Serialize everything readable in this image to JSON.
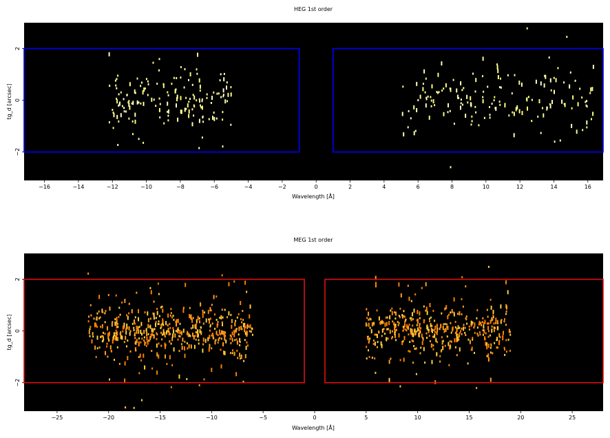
{
  "chart_data": [
    {
      "type": "heatmap",
      "title": "HEG 1st order",
      "xlabel": "Wavelength [Å]",
      "ylabel": "tg_d [arcsec]",
      "xlim": [
        -17.2,
        16.9
      ],
      "ylim": [
        -3.1,
        3.0
      ],
      "xticks": [
        -16,
        -14,
        -12,
        -10,
        -8,
        -6,
        -4,
        -2,
        0,
        2,
        4,
        6,
        8,
        10,
        12,
        14,
        16
      ],
      "yticks": [
        -2,
        0,
        2
      ],
      "background_color": "#000000",
      "event_colors": [
        "#ffff80",
        "#ffffc0"
      ],
      "region_color": "#0000ff",
      "regions": [
        {
          "x": [
            -17.2,
            -1.0
          ],
          "y": [
            -2.0,
            2.0
          ]
        },
        {
          "x": [
            1.0,
            16.9
          ],
          "y": [
            -2.0,
            2.0
          ]
        }
      ],
      "event_clusters": [
        {
          "x_range": [
            -12.2,
            -5.0
          ],
          "core_sd": 0.6,
          "count": 170
        },
        {
          "x_range": [
            5.0,
            16.4
          ],
          "core_sd": 0.6,
          "count": 170
        }
      ]
    },
    {
      "type": "heatmap",
      "title": "MEG 1st order",
      "xlabel": "Wavelength [Å]",
      "ylabel": "tg_d [arcsec]",
      "xlim": [
        -28.2,
        28.0
      ],
      "ylim": [
        -3.1,
        3.0
      ],
      "xticks": [
        -25,
        -20,
        -15,
        -10,
        -5,
        0,
        5,
        10,
        15,
        20,
        25
      ],
      "yticks": [
        -2,
        0,
        2
      ],
      "background_color": "#000000",
      "event_colors": [
        "#ff7f00",
        "#ffa020",
        "#ffd040"
      ],
      "region_color": "#e01010",
      "regions": [
        {
          "x": [
            -28.2,
            -1.0
          ],
          "y": [
            -2.0,
            2.0
          ]
        },
        {
          "x": [
            1.0,
            28.0
          ],
          "y": [
            -2.0,
            2.0
          ]
        }
      ],
      "event_clusters": [
        {
          "x_range": [
            -22.0,
            -6.0
          ],
          "core_sd": 0.45,
          "count": 520
        },
        {
          "x_range": [
            5.0,
            19.0
          ],
          "core_sd": 0.45,
          "count": 440
        }
      ]
    }
  ]
}
